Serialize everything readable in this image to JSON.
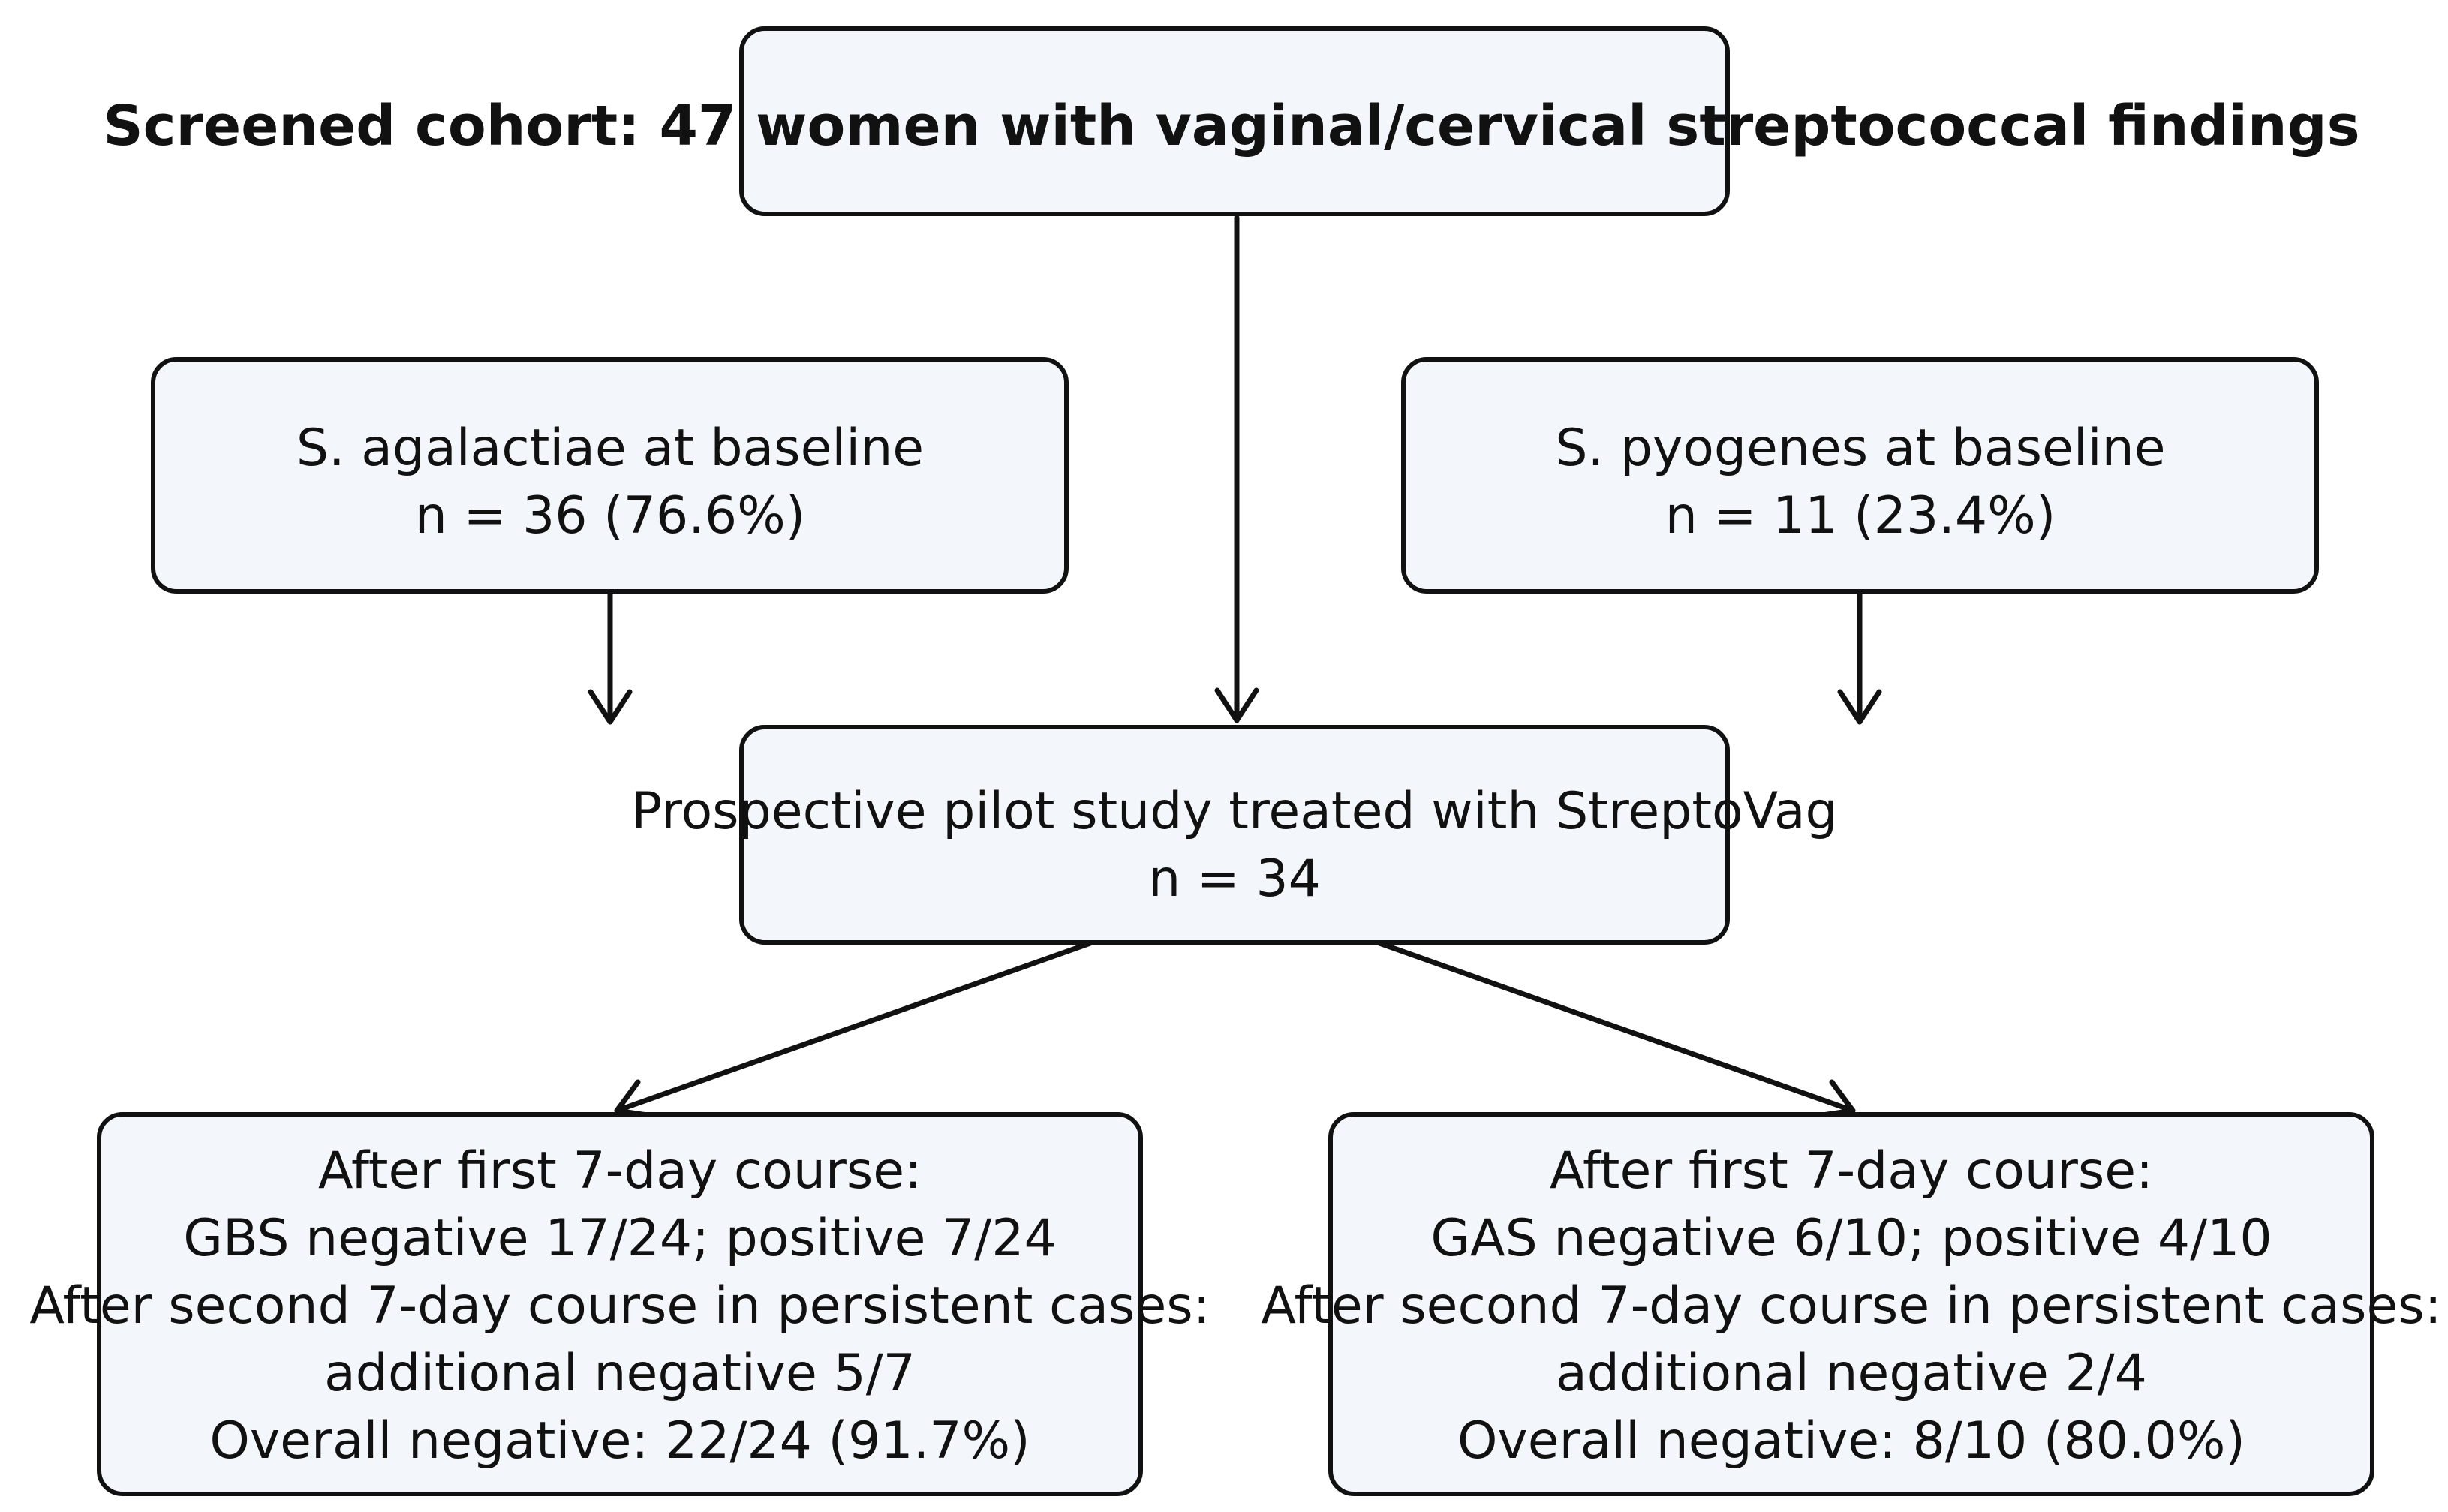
{
  "nodes": {
    "screened": {
      "lines": [
        "Screened cohort: 47 women with vaginal/cervical streptococcal findings"
      ]
    },
    "agalactiae": {
      "lines": [
        "S. agalactiae at baseline",
        "n = 36 (76.6%)"
      ]
    },
    "pyogenes": {
      "lines": [
        "S. pyogenes at baseline",
        "n = 11 (23.4%)"
      ]
    },
    "pilot": {
      "lines": [
        "Prospective pilot study treated with StreptoVag",
        "n = 34"
      ]
    },
    "gbs_outcome": {
      "lines": [
        "After first 7-day course:",
        "GBS negative 17/24; positive 7/24",
        "After second 7-day course in persistent cases:",
        "additional negative 5/7",
        "Overall negative: 22/24 (91.7%)"
      ]
    },
    "gas_outcome": {
      "lines": [
        "After first 7-day course:",
        "GAS negative 6/10; positive 4/10",
        "After second 7-day course in persistent cases:",
        "additional negative 2/4",
        "Overall negative: 8/10 (80.0%)"
      ]
    }
  },
  "colors": {
    "box_fill": "#f3f6fb",
    "stroke": "#111111",
    "text": "#111111"
  }
}
